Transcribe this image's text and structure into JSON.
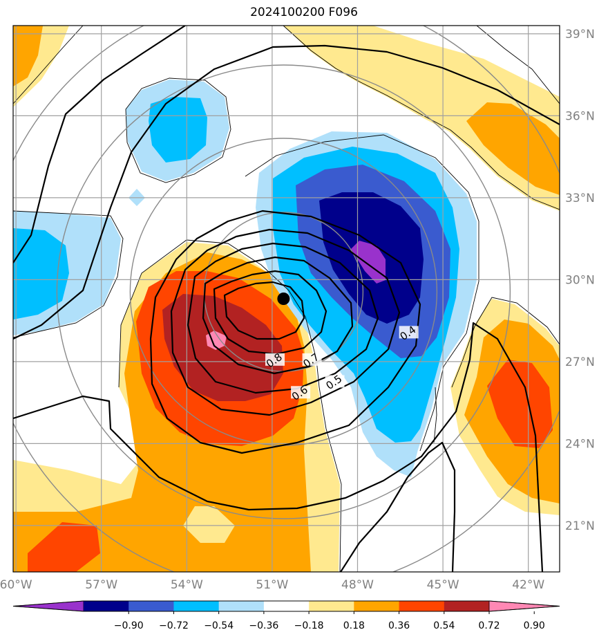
{
  "chart_data": {
    "type": "heatmap",
    "title": "2024100200 F096",
    "projection": "polar-centered map",
    "lon_ticks": [
      "60°W",
      "57°W",
      "54°W",
      "51°W",
      "48°W",
      "45°W",
      "42°W"
    ],
    "lat_ticks": [
      "39°N",
      "36°N",
      "33°N",
      "30°N",
      "27°N",
      "24°N",
      "21°N"
    ],
    "lon_range": [
      -60.1,
      -40.9
    ],
    "lat_range": [
      19.3,
      39.3
    ],
    "grid": true,
    "colorbar": {
      "placement": "bottom",
      "levels": [
        -0.9,
        -0.72,
        -0.54,
        -0.36,
        -0.18,
        0.18,
        0.36,
        0.54,
        0.72,
        0.9
      ],
      "tick_labels": [
        "−0.90",
        "−0.72",
        "−0.54",
        "−0.36",
        "−0.18",
        "0.18",
        "0.36",
        "0.54",
        "0.72",
        "0.90"
      ],
      "colors": [
        "#9932cc",
        "#00008b",
        "#3a5bcf",
        "#00bfff",
        "#b0e0fa",
        "#ffffff",
        "#ffe98f",
        "#ffa500",
        "#ff4500",
        "#b22222",
        "#ff88b4"
      ],
      "extend": "both"
    },
    "contour_labels": [
      {
        "text": "0.8",
        "lon": -50.9,
        "lat": 27.0
      },
      {
        "text": "0.7",
        "lon": -49.6,
        "lat": 27.0
      },
      {
        "text": "0.6",
        "lon": -50.0,
        "lat": 25.8
      },
      {
        "text": "0.5",
        "lon": -48.8,
        "lat": 26.2
      },
      {
        "text": "0.4",
        "lon": -46.2,
        "lat": 28.0
      }
    ],
    "storm_center": {
      "lon": -50.6,
      "lat": 29.3
    }
  }
}
